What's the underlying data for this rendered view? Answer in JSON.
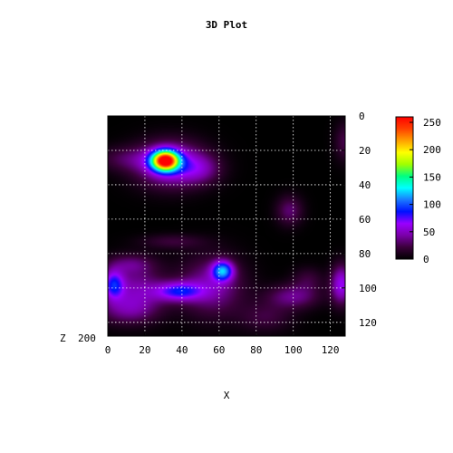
{
  "chart_data": {
    "type": "heatmap",
    "title": "3D Plot",
    "xlabel": "X",
    "zlabel": "Z",
    "zlabel_extra": "200",
    "xlim": [
      0,
      128
    ],
    "ylim": [
      0,
      128
    ],
    "y_direction": "down",
    "x_ticks": [
      "0",
      "20",
      "40",
      "60",
      "80",
      "100",
      "120"
    ],
    "y_ticks": [
      "0",
      "20",
      "40",
      "60",
      "80",
      "100",
      "120"
    ],
    "colorbar": {
      "range": [
        0,
        260
      ],
      "ticks": [
        "0",
        "50",
        "100",
        "150",
        "200",
        "250"
      ],
      "palette": [
        "#000000",
        "#3a003a",
        "#7a00a8",
        "#9a00ff",
        "#0010ff",
        "#1a7aff",
        "#00ffff",
        "#00ff80",
        "#a0ff00",
        "#ffff00",
        "#ffa000",
        "#ff4000",
        "#ff0000"
      ]
    },
    "grid": true,
    "blobs": [
      {
        "x": 31,
        "y": 26,
        "sx": 5,
        "sy": 4,
        "value": 230
      },
      {
        "x": 34,
        "y": 28,
        "sx": 13,
        "sy": 9,
        "value": 70
      },
      {
        "x": 10,
        "y": 25,
        "sx": 12,
        "sy": 5,
        "value": 22
      },
      {
        "x": 50,
        "y": 31,
        "sx": 8,
        "sy": 6,
        "value": 28
      },
      {
        "x": 128,
        "y": 15,
        "sx": 4,
        "sy": 8,
        "value": 25
      },
      {
        "x": 98,
        "y": 55,
        "sx": 5,
        "sy": 6,
        "value": 32
      },
      {
        "x": 35,
        "y": 73,
        "sx": 12,
        "sy": 3,
        "value": 20
      },
      {
        "x": 62,
        "y": 90,
        "sx": 4,
        "sy": 4,
        "value": 95
      },
      {
        "x": 56,
        "y": 99,
        "sx": 12,
        "sy": 12,
        "value": 45
      },
      {
        "x": 38,
        "y": 102,
        "sx": 9,
        "sy": 4,
        "value": 70
      },
      {
        "x": 15,
        "y": 101,
        "sx": 11,
        "sy": 10,
        "value": 42
      },
      {
        "x": 3,
        "y": 98,
        "sx": 4,
        "sy": 6,
        "value": 70
      },
      {
        "x": 12,
        "y": 86,
        "sx": 9,
        "sy": 4,
        "value": 26
      },
      {
        "x": 10,
        "y": 113,
        "sx": 12,
        "sy": 6,
        "value": 28
      },
      {
        "x": 100,
        "y": 105,
        "sx": 10,
        "sy": 5,
        "value": 38
      },
      {
        "x": 126,
        "y": 98,
        "sx": 4,
        "sy": 8,
        "value": 62
      },
      {
        "x": 85,
        "y": 117,
        "sx": 10,
        "sy": 6,
        "value": 22
      },
      {
        "x": 108,
        "y": 95,
        "sx": 6,
        "sy": 5,
        "value": 20
      }
    ]
  }
}
